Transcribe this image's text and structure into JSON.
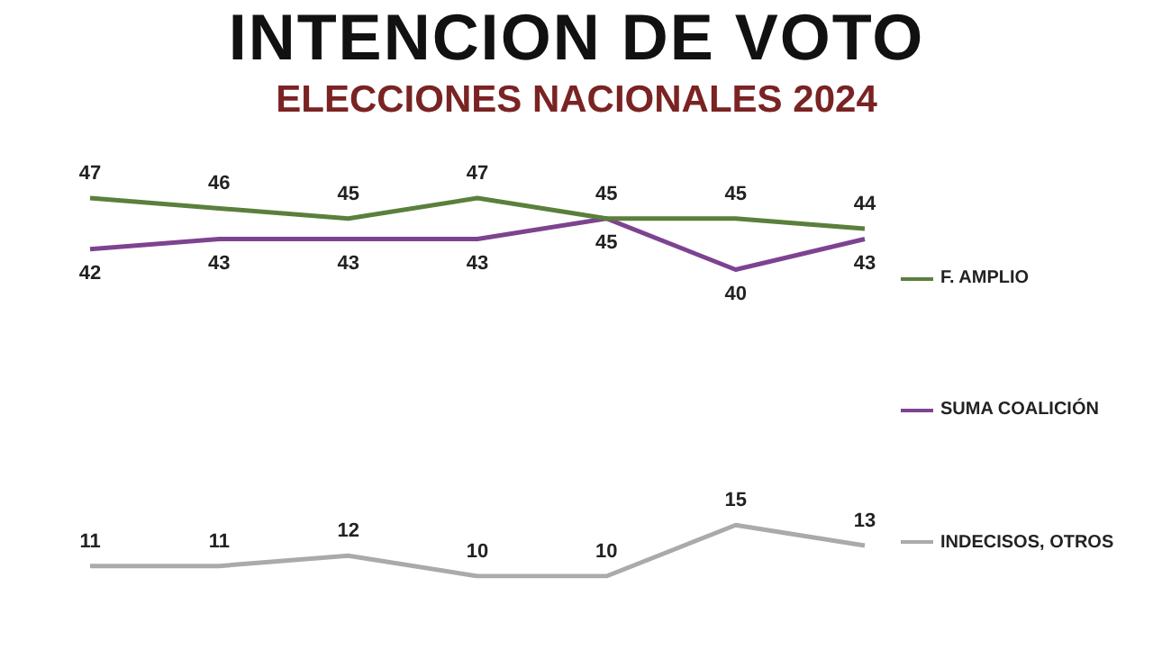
{
  "chart_data": {
    "type": "line",
    "title": "INTENCION DE VOTO",
    "subtitle": "ELECCIONES NACIONALES 2024",
    "categories": [
      null,
      null,
      null,
      null,
      null,
      null,
      null
    ],
    "series": [
      {
        "name": "F. AMPLIO",
        "color": "#5b7f3c",
        "values": [
          47,
          46,
          45,
          47,
          45,
          45,
          44
        ]
      },
      {
        "name": "SUMA COALICIÓN",
        "color": "#7d4390",
        "values": [
          42,
          43,
          43,
          43,
          45,
          40,
          43
        ]
      },
      {
        "name": "INDECISOS, OTROS",
        "color": "#aaaaaa",
        "values": [
          11,
          11,
          12,
          10,
          10,
          15,
          13
        ]
      }
    ],
    "data_labels": true,
    "legend": "right",
    "marker": "none",
    "line_style": "solid",
    "tick_labels": false
  }
}
